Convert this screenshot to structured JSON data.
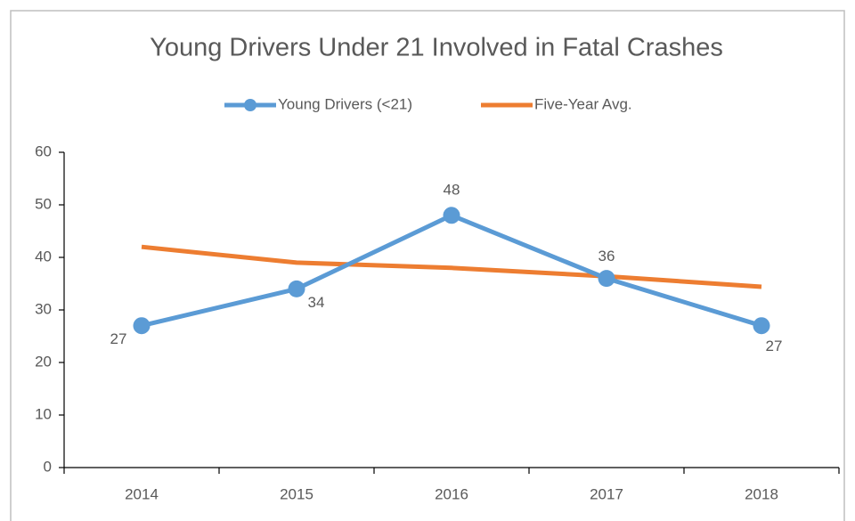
{
  "chart_data": {
    "type": "line",
    "title": "Young Drivers Under 21 Involved in Fatal Crashes",
    "categories": [
      "2014",
      "2015",
      "2016",
      "2017",
      "2018"
    ],
    "series": [
      {
        "name": "Young Drivers (<21)",
        "color": "#5b9bd5",
        "values": [
          27,
          34,
          48,
          36,
          27
        ]
      },
      {
        "name": "Five-Year Avg.",
        "color": "#ed7d31",
        "values": [
          42,
          39,
          38,
          36.4,
          34.4
        ]
      }
    ],
    "data_labels_series": 0,
    "ylim": [
      0,
      60
    ],
    "yticks": [
      0,
      10,
      20,
      30,
      40,
      50,
      60
    ],
    "legend": "top",
    "grid": false
  }
}
